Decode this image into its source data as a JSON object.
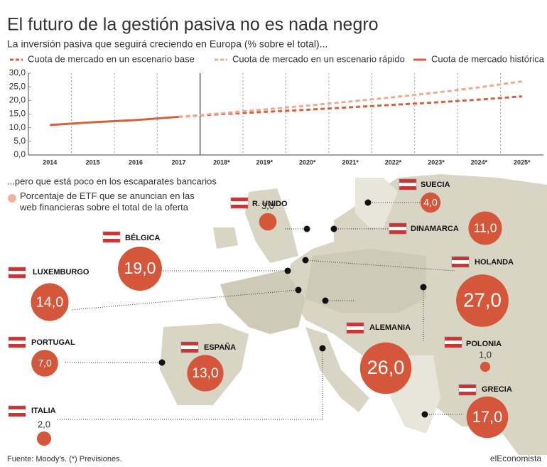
{
  "title": "El futuro de la gestión pasiva no es nada negro",
  "subtitle": "La inversión pasiva que seguirá creciendo en Europa (% sobre el total)...",
  "source": "Fuente: Moody's. (*) Previsiones.",
  "brand": "elEconomista",
  "chart_data": [
    {
      "type": "line",
      "categories": [
        "2014",
        "2015",
        "2016",
        "2017",
        "2018*",
        "2019*",
        "2020*",
        "2021*",
        "2022*",
        "2023*",
        "2024*",
        "2025*"
      ],
      "ylim": [
        0,
        30
      ],
      "yticks": [
        {
          "value": 0,
          "label": "0,0"
        },
        {
          "value": 5,
          "label": "5,0"
        },
        {
          "value": 10,
          "label": "10,0"
        },
        {
          "value": 15,
          "label": "15,0"
        },
        {
          "value": 20,
          "label": "20,0"
        },
        {
          "value": 25,
          "label": "25,0"
        },
        {
          "value": 30,
          "label": "30,0"
        }
      ],
      "series": [
        {
          "name": "Cuota de mercado en un escenario base",
          "color": "#d4603f",
          "dashed": true,
          "values": [
            null,
            null,
            null,
            14,
            15.0,
            15.8,
            16.6,
            17.5,
            18.4,
            19.3,
            20.3,
            21.5
          ]
        },
        {
          "name": "Cuota de mercado en un escenario rápido",
          "color": "#eeab92",
          "dashed": true,
          "values": [
            null,
            null,
            null,
            14,
            15.3,
            16.7,
            18.1,
            19.6,
            21.2,
            22.9,
            24.8,
            27
          ]
        },
        {
          "name": "Cuota de mercado histórica",
          "color": "#d4603f",
          "dashed": false,
          "values": [
            11,
            12,
            12.8,
            14,
            null,
            null,
            null,
            null,
            null,
            null,
            null,
            null
          ]
        }
      ]
    },
    {
      "type": "bubble",
      "subtitle": "...pero que está poco en los escaparates bancarios",
      "legend": "Porcentaje de ETF que se anuncian en las web financieras sobre el total de la oferta",
      "legend_color": "#f0b49e",
      "color": "#d4573b",
      "categories": [
        "R. UNIDO",
        "SUECIA",
        "DINAMARCA",
        "BÉLGICA",
        "LUXEMBURGO",
        "HOLANDA",
        "ALEMANIA",
        "POLONIA",
        "PORTUGAL",
        "ESPAÑA",
        "GRECIA",
        "ITALIA"
      ],
      "values": [
        3,
        4,
        11,
        19,
        14,
        27,
        26,
        1,
        7,
        13,
        17,
        2
      ],
      "value_labels": [
        "3,0",
        "4,0",
        "11,0",
        "19,0",
        "14,0",
        "27,0",
        "26,0",
        "1,0",
        "7,0",
        "13,0",
        "17,0",
        "2,0"
      ]
    }
  ]
}
